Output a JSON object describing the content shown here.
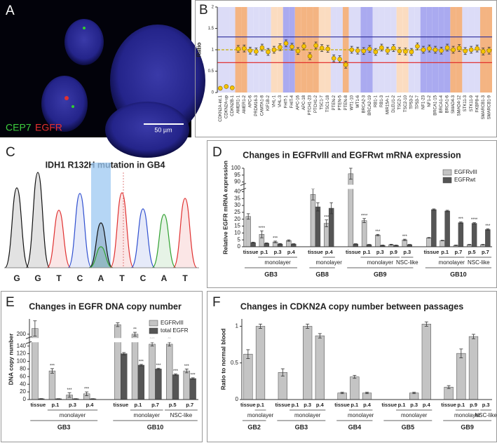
{
  "panel_labels": [
    "A",
    "B",
    "C",
    "D",
    "E",
    "F"
  ],
  "image_a": {
    "stains": [
      "CEP7",
      "EGFR"
    ],
    "scale_bar": "50 µm"
  },
  "chromatogram": {
    "title": "IDH1 R132H mutation in GB4",
    "bases": [
      "G",
      "G",
      "T",
      "C",
      "A",
      "T",
      "C",
      "A",
      "T"
    ]
  },
  "chart_data": [
    {
      "type": "dot",
      "ylabel": "Ratio",
      "ylim": [
        0,
        2
      ],
      "yticks": [
        0,
        0.5,
        1,
        1.5,
        2
      ],
      "grid": false,
      "color": "#f5c400",
      "categories": [
        "CDKN2A-int.1",
        "CDKN2A-up",
        "CDKN2B-1",
        "AMER1-1",
        "AMER1-2",
        "APC-6",
        "PRDM16-3",
        "CAMTA1-8",
        "KIF1B-2",
        "VHL-1",
        "VHL-3",
        "FHIT-1",
        "FHIT-4",
        "APC-16",
        "APC-18",
        "PTCH1-23",
        "PTCH1-2",
        "TSC1-7",
        "TSC1-18",
        "PTEN-2",
        "PTEN-5",
        "PTEN-8",
        "WT1-10",
        "WT1-6",
        "BRCA2-3",
        "BRCA2-19",
        "RB1-1",
        "RB1-3",
        "MIR15A-1",
        "DLEU1-2",
        "TSC2-1",
        "TSC2-10",
        "TP53-2",
        "TP53-7",
        "NF1-23",
        "NF1-2",
        "BRCA1-15",
        "BRCA1-4",
        "BRCA1-6",
        "SMAD4-3",
        "SMAD4-12",
        "STK11-3",
        "STK11-9",
        "FKBP8-4",
        "SMARCB1-3",
        "SMARCB1-9"
      ],
      "values": [
        0.1,
        0.14,
        0.11,
        1.02,
        1.03,
        0.98,
        0.96,
        1.05,
        0.95,
        1.0,
        1.06,
        1.15,
        1.07,
        0.97,
        1.08,
        0.85,
        1.1,
        1.04,
        1.02,
        0.8,
        0.78,
        0.65,
        1.0,
        0.98,
        0.97,
        1.02,
        0.95,
        1.05,
        0.98,
        1.04,
        0.97,
        0.96,
        0.95,
        1.08,
        1.0,
        1.03,
        1.0,
        0.98,
        1.05,
        1.0,
        1.04,
        0.97,
        1.0,
        1.03,
        0.96,
        0.98
      ],
      "errors": [
        0.02,
        0.02,
        0.02,
        0.08,
        0.08,
        0.08,
        0.08,
        0.08,
        0.08,
        0.08,
        0.08,
        0.08,
        0.08,
        0.08,
        0.08,
        0.08,
        0.08,
        0.08,
        0.08,
        0.08,
        0.08,
        0.08,
        0.08,
        0.08,
        0.08,
        0.08,
        0.08,
        0.08,
        0.08,
        0.08,
        0.08,
        0.08,
        0.08,
        0.08,
        0.08,
        0.08,
        0.08,
        0.08,
        0.08,
        0.08,
        0.08,
        0.08,
        0.08,
        0.08,
        0.08,
        0.08
      ],
      "band_colors": [
        "#dcdcf7",
        "#dcdcf7",
        "#dcdcf7",
        "#f4b482",
        "#f4b482",
        "#dcdcf7",
        "#dcdcf7",
        "#dcdcf7",
        "#dcdcf7",
        "#fbdcc0",
        "#fbdcc0",
        "#aaaaf0",
        "#aaaaf0",
        "#f4b482",
        "#f4b482",
        "#f4b482",
        "#f4b482",
        "#fbdcc0",
        "#fbdcc0",
        "#dcdcf7",
        "#dcdcf7",
        "#f4b482",
        "#dcdcf7",
        "#dcdcf7",
        "#aaaaf0",
        "#aaaaf0",
        "#dcdcf7",
        "#dcdcf7",
        "#dcdcf7",
        "#dcdcf7",
        "#fbdcc0",
        "#fbdcc0",
        "#dcdcf7",
        "#dcdcf7",
        "#aaaaf0",
        "#aaaaf0",
        "#aaaaf0",
        "#aaaaf0",
        "#aaaaf0",
        "#f4b482",
        "#f4b482",
        "#dcdcf7",
        "#dcdcf7",
        "#dcdcf7",
        "#f4b482",
        "#f4b482"
      ],
      "reference_lines": [
        {
          "value": 1.3,
          "color": "#2a2a9a"
        },
        {
          "value": 0.7,
          "color": "#e02020"
        },
        {
          "value": 1,
          "color": "#c8b000",
          "dashed": true
        }
      ]
    },
    {
      "type": "bar",
      "title": "Changes in EGFRvIII and EGFRwt mRNA expression",
      "ylabel": "Relative EGFR mRNA expression",
      "ylim": [
        0,
        100
      ],
      "axis_breaks": [
        [
          42,
          88
        ]
      ],
      "yticks": [
        0,
        5,
        10,
        15,
        20,
        25,
        30,
        35,
        40,
        90,
        95,
        100
      ],
      "grid": false,
      "legend": "upper right",
      "groups": [
        {
          "name": "GB3",
          "subgroups": [
            {
              "name": null,
              "categories": [
                "tissue"
              ]
            },
            {
              "name": "monolayer",
              "categories": [
                "p.1",
                "p.3",
                "p.4"
              ]
            }
          ]
        },
        {
          "name": "GB8",
          "subgroups": [
            {
              "name": null,
              "categories": [
                "tissue"
              ]
            },
            {
              "name": "monolayer",
              "categories": [
                "p.4"
              ]
            }
          ]
        },
        {
          "name": "GB9",
          "subgroups": [
            {
              "name": null,
              "categories": [
                "tissue"
              ]
            },
            {
              "name": "monolayer",
              "categories": [
                "p.1",
                "p.3",
                "p.9"
              ]
            },
            {
              "name": "NSC-like",
              "categories": [
                "p.3"
              ]
            }
          ]
        },
        {
          "name": "GB10",
          "subgroups": [
            {
              "name": null,
              "categories": [
                "tissue"
              ]
            },
            {
              "name": "monolayer",
              "categories": [
                "p.1",
                "p.7"
              ]
            },
            {
              "name": "NSC-like",
              "categories": [
                "p.5",
                "p.7"
              ]
            }
          ]
        }
      ],
      "series": [
        {
          "name": "EGFRvIII",
          "color": "#c4c4c4",
          "values": [
            22,
            9,
            3.5,
            4.5,
            38,
            17,
            96,
            19,
            8.5,
            1.5,
            5,
            6.5,
            4.5,
            1,
            1.5,
            1.5
          ],
          "errors": [
            2,
            2.5,
            0.6,
            0.5,
            4,
            2.5,
            4,
            1.5,
            0.5,
            0.3,
            0.5,
            0.2,
            0.2,
            0.2,
            0.2,
            0.2
          ],
          "significance": [
            null,
            "****",
            "***",
            null,
            null,
            "***",
            null,
            "****",
            "***",
            null,
            "***",
            null,
            null,
            null,
            null,
            null
          ]
        },
        {
          "name": "EGFRwt",
          "color": "#555555",
          "values": [
            3,
            2.5,
            2,
            2,
            29,
            28,
            2,
            1.5,
            1,
            1,
            1.5,
            27,
            26,
            17.5,
            17,
            12.5
          ],
          "errors": [
            0.3,
            0.3,
            0.3,
            0.2,
            3,
            4,
            0.2,
            0.2,
            0.2,
            0.2,
            0.2,
            0.5,
            0.5,
            0.5,
            0.5,
            0.5
          ],
          "significance": [
            null,
            null,
            null,
            null,
            null,
            null,
            null,
            null,
            null,
            null,
            null,
            null,
            null,
            "***",
            "****",
            "***"
          ]
        }
      ]
    },
    {
      "type": "bar",
      "title": "Changes in EGFR DNA copy number",
      "ylabel": "DNA copy number",
      "ylim": [
        0,
        240
      ],
      "axis_breaks": [
        [
          150,
          190
        ]
      ],
      "yticks": [
        0,
        20,
        40,
        60,
        80,
        100,
        120,
        140,
        200
      ],
      "grid": false,
      "legend": "upper right",
      "groups": [
        {
          "name": "GB3",
          "subgroups": [
            {
              "name": null,
              "categories": [
                "tissue"
              ]
            },
            {
              "name": "monolayer",
              "categories": [
                "p.1",
                "p.3",
                "p.4"
              ]
            }
          ]
        },
        {
          "name": "GB10",
          "subgroups": [
            {
              "name": null,
              "categories": [
                "tissue"
              ]
            },
            {
              "name": "monolayer",
              "categories": [
                "p.1",
                "p.7"
              ]
            },
            {
              "name": "NSC-like",
              "categories": [
                "p.5",
                "p.7"
              ]
            }
          ]
        }
      ],
      "series": [
        {
          "name": "EGFRvIII",
          "color": "#c4c4c4",
          "values": [
            215,
            75,
            12,
            15,
            225,
            200,
            145,
            145,
            75
          ],
          "errors": [
            20,
            6,
            6,
            5,
            5,
            5,
            5,
            5,
            5
          ],
          "significance": [
            null,
            "***",
            "***",
            "***",
            null,
            "**",
            "***",
            "**",
            "***"
          ]
        },
        {
          "name": "total EGFR",
          "color": "#555555",
          "values": [
            2,
            2,
            2,
            2,
            120,
            90,
            80,
            65,
            55
          ],
          "errors": [
            0.5,
            0.3,
            0.3,
            0.3,
            3,
            2,
            2,
            2,
            2
          ],
          "significance": [
            null,
            null,
            null,
            null,
            null,
            "***",
            "***",
            "***",
            "***"
          ]
        }
      ]
    },
    {
      "type": "bar",
      "title": "Changes in CDKN2A copy number between passages",
      "ylabel": "Ratio to normal blood",
      "ylim": [
        0,
        1.1
      ],
      "yticks": [
        0,
        0.5,
        1
      ],
      "grid": false,
      "groups": [
        {
          "name": "GB2",
          "subgroups": [
            {
              "name": null,
              "categories": [
                "tissue"
              ]
            },
            {
              "name": "monolayer",
              "categories": [
                "p.1"
              ]
            }
          ]
        },
        {
          "name": "GB3",
          "subgroups": [
            {
              "name": null,
              "categories": [
                "tissue"
              ]
            },
            {
              "name": "monolayer",
              "categories": [
                "p.1",
                "p.3",
                "p.4"
              ]
            }
          ]
        },
        {
          "name": "GB4",
          "subgroups": [
            {
              "name": null,
              "categories": [
                "tissue"
              ]
            },
            {
              "name": "monolayer",
              "categories": [
                "p.1",
                "p.4"
              ]
            }
          ]
        },
        {
          "name": "GB5",
          "subgroups": [
            {
              "name": null,
              "categories": [
                "tissue"
              ]
            },
            {
              "name": "monolayer",
              "categories": [
                "p.1",
                "p.3",
                "p.4"
              ]
            }
          ]
        },
        {
          "name": "GB9",
          "subgroups": [
            {
              "name": null,
              "categories": [
                "tissue"
              ]
            },
            {
              "name": "monolayer",
              "categories": [
                "p.1",
                "p.9"
              ]
            },
            {
              "name": "NSC-like",
              "categories": [
                "p.3"
              ]
            }
          ]
        }
      ],
      "series": [
        {
          "name": null,
          "color": "#c4c4c4",
          "values": [
            0.62,
            1.0,
            0.37,
            0,
            1.0,
            0.87,
            0.09,
            0.31,
            0.09,
            0,
            0,
            0.09,
            1.03,
            0.17,
            0.63,
            0.86,
            0
          ],
          "errors": [
            0.06,
            0.03,
            0.05,
            0,
            0.03,
            0.03,
            0.01,
            0.02,
            0.01,
            0,
            0,
            0.01,
            0.03,
            0.02,
            0.06,
            0.03,
            0
          ]
        }
      ]
    }
  ]
}
